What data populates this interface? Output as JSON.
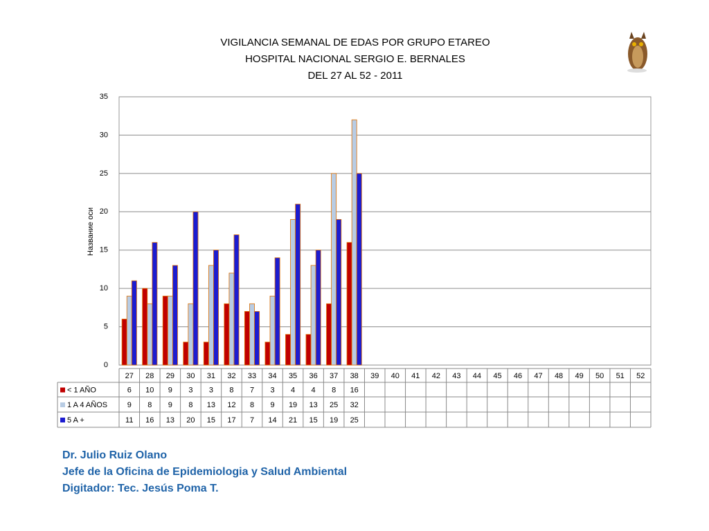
{
  "chart_data": {
    "type": "bar",
    "title": [
      "VIGILANCIA SEMANAL DE EDAS POR GRUPO ETAREO",
      "HOSPITAL NACIONAL SERGIO E. BERNALES",
      "DEL 27 AL 52 - 2011"
    ],
    "y_label": "Название оси",
    "categories": [
      "27",
      "28",
      "29",
      "30",
      "31",
      "32",
      "33",
      "34",
      "35",
      "36",
      "37",
      "38",
      "39",
      "40",
      "41",
      "42",
      "43",
      "44",
      "45",
      "46",
      "47",
      "48",
      "49",
      "50",
      "51",
      "52"
    ],
    "series": [
      {
        "name": "< 1 AÑO",
        "color": "#c00000",
        "values": [
          6,
          10,
          9,
          3,
          3,
          8,
          7,
          3,
          4,
          4,
          8,
          16,
          null,
          null,
          null,
          null,
          null,
          null,
          null,
          null,
          null,
          null,
          null,
          null,
          null,
          null
        ]
      },
      {
        "name": "1 A 4 AÑOS",
        "color": "#b8cce4",
        "values": [
          9,
          8,
          9,
          8,
          13,
          12,
          8,
          9,
          19,
          13,
          25,
          32,
          null,
          null,
          null,
          null,
          null,
          null,
          null,
          null,
          null,
          null,
          null,
          null,
          null,
          null
        ]
      },
      {
        "name": "5 A +",
        "color": "#1c1cd0",
        "values": [
          11,
          16,
          13,
          20,
          15,
          17,
          7,
          14,
          21,
          15,
          19,
          25,
          null,
          null,
          null,
          null,
          null,
          null,
          null,
          null,
          null,
          null,
          null,
          null,
          null,
          null
        ]
      }
    ],
    "ylim": [
      0,
      35
    ],
    "yticks": [
      0,
      5,
      10,
      15,
      20,
      25,
      30,
      35
    ],
    "grid": true
  },
  "footer": [
    "Dr.  Julio Ruiz Olano",
    "Jefe de la Oficina de Epidemiologia y  Salud Ambiental",
    "Digitador: Tec. Jesús Poma T."
  ]
}
